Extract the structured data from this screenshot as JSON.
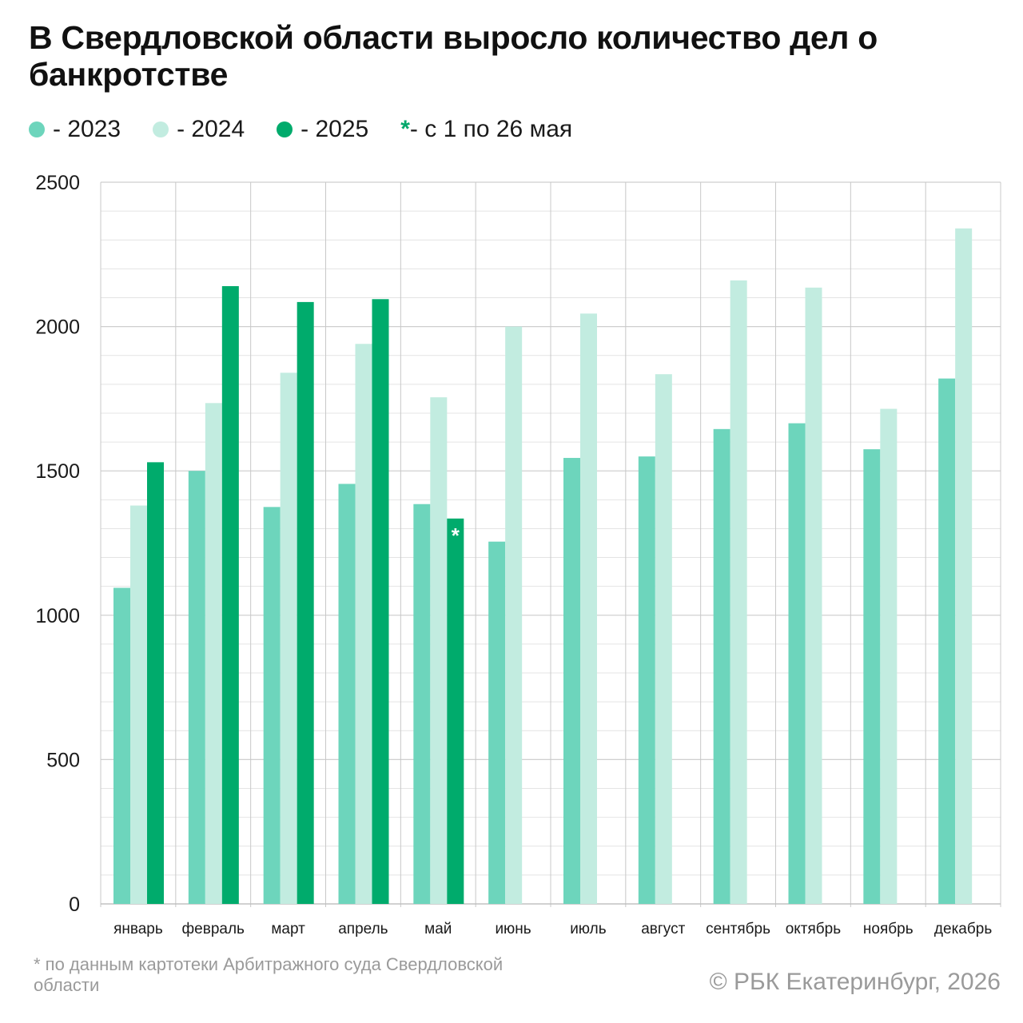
{
  "title": "В Свердловской области выросло количество дел о банкротстве",
  "legend": [
    {
      "label": "- 2023",
      "color": "#6dd5bc"
    },
    {
      "label": "- 2024",
      "color": "#c2ece0"
    },
    {
      "label": "- 2025",
      "color": "#00ab6c"
    }
  ],
  "legend_note": {
    "star": "*",
    "text": "- с 1 по 26 мая"
  },
  "footnote": "* по данным картотеки Арбитражного суда Свердловской области",
  "copyright": "© РБК Екатеринбург, 2026",
  "chart_data": {
    "type": "bar",
    "categories": [
      "январь",
      "февраль",
      "март",
      "апрель",
      "май",
      "июнь",
      "июль",
      "август",
      "сентябрь",
      "октябрь",
      "ноябрь",
      "декабрь"
    ],
    "series": [
      {
        "name": "- 2023",
        "color": "#6dd5bc",
        "values": [
          1095,
          1500,
          1375,
          1455,
          1385,
          1255,
          1545,
          1550,
          1645,
          1665,
          1575,
          1820
        ]
      },
      {
        "name": "- 2024",
        "color": "#c2ece0",
        "values": [
          1380,
          1735,
          1840,
          1940,
          1755,
          2000,
          2045,
          1835,
          2160,
          2135,
          1715,
          2340
        ]
      },
      {
        "name": "- 2025",
        "color": "#00ab6c",
        "values": [
          1530,
          2140,
          2085,
          2095,
          1335,
          null,
          null,
          null,
          null,
          null,
          null,
          null
        ]
      }
    ],
    "annotations": [
      {
        "category": "май",
        "series": "- 2025",
        "text": "*"
      }
    ],
    "yticks": [
      "0",
      "500",
      "1000",
      "1500",
      "2000",
      "2500"
    ],
    "ylim": [
      0,
      2500
    ],
    "grid": true,
    "legend_position": "top-left"
  }
}
